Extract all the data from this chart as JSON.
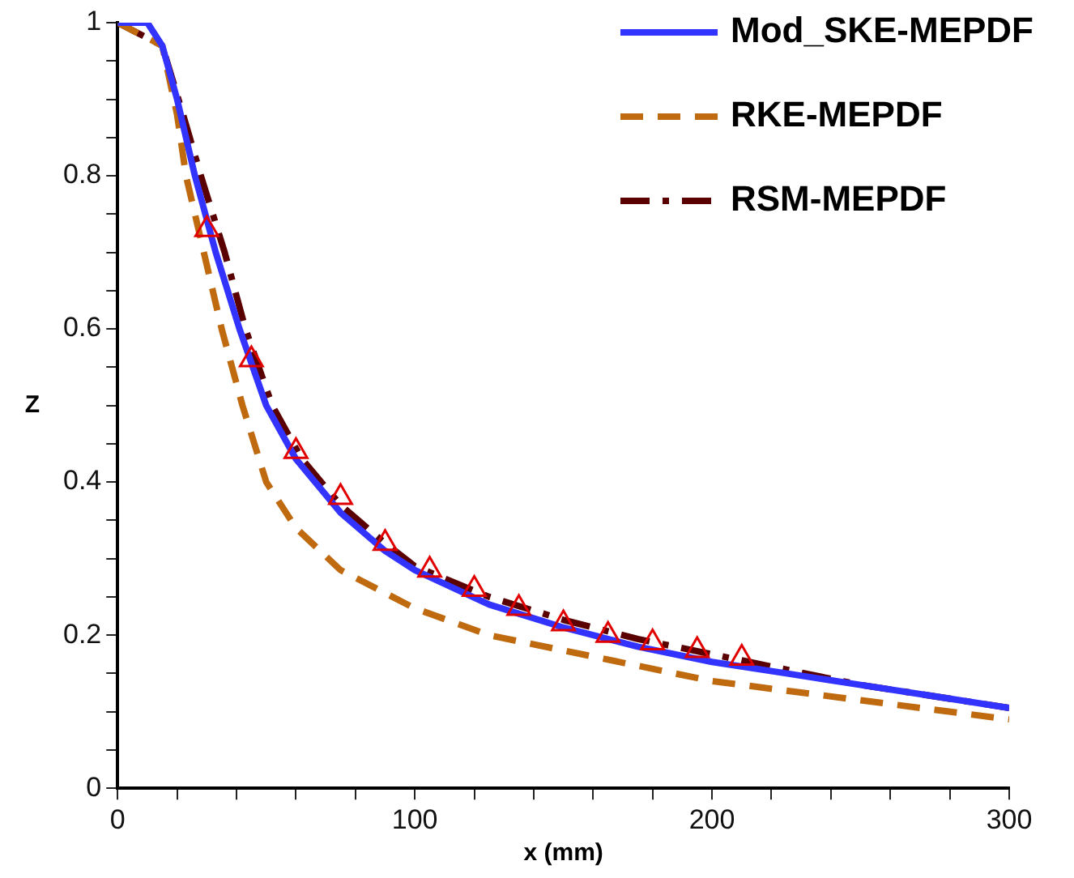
{
  "chart_data": {
    "type": "line",
    "xlabel": "x (mm)",
    "ylabel": "Z",
    "xlim": [
      0,
      300
    ],
    "ylim": [
      0,
      1
    ],
    "xticks": [
      0,
      {
        "value": 20,
        "label": null
      },
      {
        "value": 40,
        "label": null
      },
      {
        "value": 60,
        "label": null
      },
      {
        "value": 80,
        "label": null
      },
      100,
      {
        "value": 120,
        "label": null
      },
      {
        "value": 140,
        "label": null
      },
      {
        "value": 160,
        "label": null
      },
      {
        "value": 180,
        "label": null
      },
      200,
      {
        "value": 220,
        "label": null
      },
      {
        "value": 240,
        "label": null
      },
      {
        "value": 260,
        "label": null
      },
      {
        "value": 280,
        "label": null
      },
      300
    ],
    "yticks": [
      0,
      {
        "value": 0.05,
        "label": null
      },
      {
        "value": 0.1,
        "label": null
      },
      {
        "value": 0.15,
        "label": null
      },
      0.2,
      {
        "value": 0.25,
        "label": null
      },
      {
        "value": 0.3,
        "label": null
      },
      {
        "value": 0.35,
        "label": null
      },
      0.4,
      {
        "value": 0.45,
        "label": null
      },
      {
        "value": 0.5,
        "label": null
      },
      {
        "value": 0.55,
        "label": null
      },
      0.6,
      {
        "value": 0.65,
        "label": null
      },
      {
        "value": 0.7,
        "label": null
      },
      {
        "value": 0.75,
        "label": null
      },
      0.8,
      {
        "value": 0.85,
        "label": null
      },
      {
        "value": 0.9,
        "label": null
      },
      {
        "value": 0.95,
        "label": null
      },
      1
    ],
    "grid": false,
    "legend": "top right",
    "series": [
      {
        "name": "Mod_SKE-MEPDF",
        "color": "#3333ff",
        "line_style": "solid",
        "marker": "none",
        "x": [
          0,
          10,
          15,
          20,
          26,
          33,
          41,
          50,
          60,
          75,
          90,
          100,
          125,
          150,
          175,
          200,
          225,
          250,
          275,
          300
        ],
        "values": [
          1,
          1,
          0.97,
          0.9,
          0.8,
          0.7,
          0.6,
          0.5,
          0.43,
          0.36,
          0.31,
          0.285,
          0.24,
          0.21,
          0.185,
          0.165,
          0.15,
          0.135,
          0.12,
          0.105
        ]
      },
      {
        "name": "RKE-MEPDF",
        "color": "#c06a10",
        "line_style": "dashed",
        "marker": "none",
        "x": [
          0,
          15,
          20,
          23,
          29,
          35,
          42,
          50,
          60,
          75,
          100,
          125,
          150,
          175,
          200,
          250,
          300
        ],
        "values": [
          1,
          0.97,
          0.88,
          0.8,
          0.7,
          0.6,
          0.5,
          0.4,
          0.34,
          0.285,
          0.235,
          0.2,
          0.18,
          0.16,
          0.14,
          0.115,
          0.09
        ]
      },
      {
        "name": "RSM-MEPDF",
        "color": "#5a0000",
        "line_style": "dashdot",
        "marker": "none",
        "x": [
          0,
          15,
          22,
          28,
          36,
          43,
          52,
          62,
          75,
          90,
          100,
          125,
          150,
          175,
          200,
          225,
          250,
          300
        ],
        "values": [
          1,
          0.97,
          0.88,
          0.8,
          0.7,
          0.6,
          0.5,
          0.43,
          0.37,
          0.32,
          0.29,
          0.25,
          0.22,
          0.195,
          0.175,
          0.155,
          0.135,
          0.105
        ]
      },
      {
        "type": "scatter",
        "color": "#e00000",
        "marker": "triangle",
        "x": [
          30,
          45,
          60,
          75,
          90,
          105,
          120,
          135,
          150,
          165,
          180,
          195,
          210
        ],
        "values": [
          0.73,
          0.56,
          0.44,
          0.38,
          0.32,
          0.285,
          0.26,
          0.235,
          0.215,
          0.2,
          0.19,
          0.18,
          0.17
        ]
      }
    ]
  }
}
